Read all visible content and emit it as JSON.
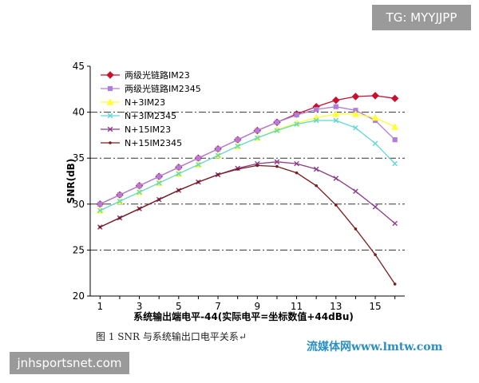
{
  "watermark_top": "TG: MYYJJPP",
  "watermark_bottom": "jnhsportsnet.com",
  "caption": "图 1 SNR 与系统输出口电平关系↵",
  "site_logo": "流媒体网www.lmtw.com",
  "chart_data": {
    "type": "line",
    "title": "",
    "xlabel": "系统输出端电平-44(实际电平=坐标数值+44dBu)",
    "ylabel": "SNR(dB)",
    "xlim": [
      0.5,
      16.5
    ],
    "ylim": [
      20,
      45
    ],
    "x_ticks": [
      1,
      3,
      5,
      7,
      9,
      11,
      13,
      15
    ],
    "y_ticks": [
      20,
      25,
      30,
      35,
      40,
      45
    ],
    "grid": "horizontal dash-dot at 25, 30, 35, 40",
    "legend_position": "top-left",
    "x": [
      1,
      2,
      3,
      4,
      5,
      6,
      7,
      8,
      9,
      10,
      11,
      12,
      13,
      14,
      15,
      16
    ],
    "series": [
      {
        "name": "两级光链路IM23",
        "color": "#c8102e",
        "marker": "diamond",
        "values": [
          30.0,
          31.0,
          32.0,
          33.0,
          34.0,
          35.0,
          36.0,
          37.0,
          38.0,
          38.9,
          39.8,
          40.6,
          41.3,
          41.7,
          41.8,
          41.5
        ]
      },
      {
        "name": "两级光链路IM2345",
        "color": "#b07ed8",
        "marker": "square",
        "values": [
          30.0,
          31.0,
          32.0,
          33.0,
          34.0,
          35.0,
          36.0,
          37.0,
          38.0,
          38.9,
          39.7,
          40.3,
          40.6,
          40.2,
          39.1,
          37.0
        ]
      },
      {
        "name": "N+3IM23",
        "color": "#ffff33",
        "marker": "triangle",
        "values": [
          29.3,
          30.3,
          31.3,
          32.3,
          33.3,
          34.3,
          35.3,
          36.3,
          37.2,
          38.1,
          38.8,
          39.4,
          39.8,
          39.8,
          39.4,
          38.4
        ]
      },
      {
        "name": "N+3IM2345",
        "color": "#5fd6d6",
        "marker": "x",
        "values": [
          29.3,
          30.3,
          31.3,
          32.3,
          33.3,
          34.3,
          35.3,
          36.3,
          37.2,
          38.0,
          38.7,
          39.1,
          39.1,
          38.3,
          36.6,
          34.4
        ]
      },
      {
        "name": "N+15IM23",
        "color": "#8a3d8a",
        "marker": "x",
        "values": [
          27.5,
          28.5,
          29.5,
          30.5,
          31.5,
          32.4,
          33.2,
          33.9,
          34.4,
          34.6,
          34.4,
          33.8,
          32.8,
          31.4,
          29.7,
          27.9
        ]
      },
      {
        "name": "N+15IM2345",
        "color": "#7a1a1a",
        "marker": "dot",
        "values": [
          27.5,
          28.5,
          29.5,
          30.5,
          31.5,
          32.4,
          33.2,
          33.8,
          34.2,
          34.1,
          33.4,
          32.0,
          29.9,
          27.3,
          24.5,
          21.3
        ]
      }
    ]
  }
}
